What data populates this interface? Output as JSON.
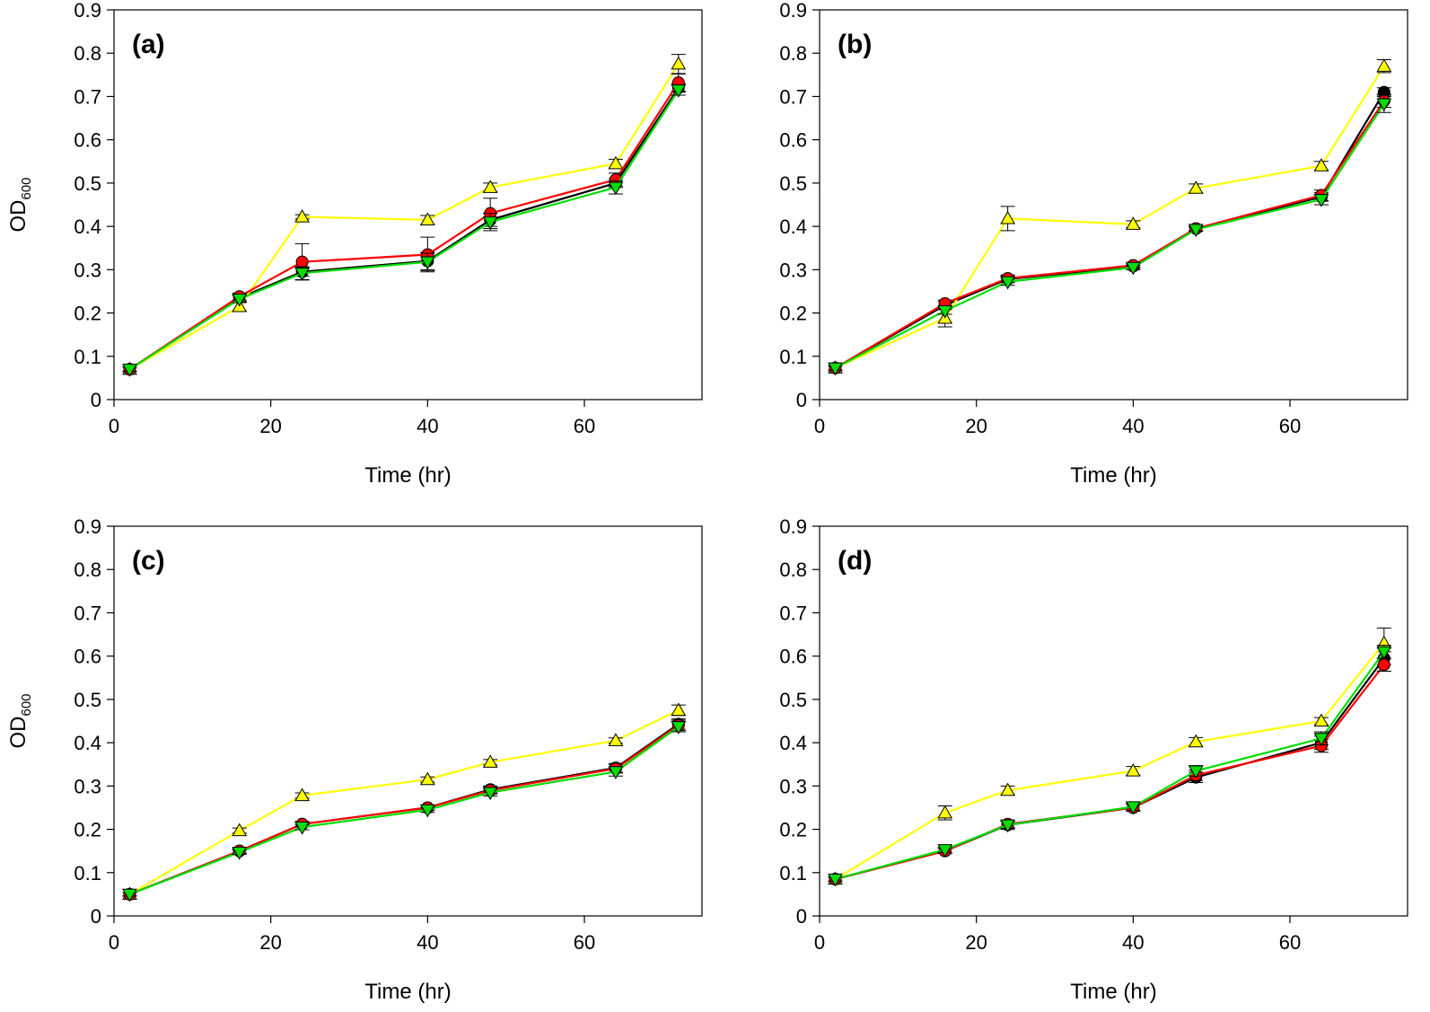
{
  "chart_data": [
    {
      "type": "line",
      "panel_label": "(a)",
      "xlabel": "Time (hr)",
      "ylabel_main": "OD",
      "ylabel_sub": "600",
      "xlim": [
        0,
        75
      ],
      "ylim": [
        0,
        0.9
      ],
      "xticks": [
        0,
        20,
        40,
        60
      ],
      "yticks": [
        0,
        0.1,
        0.2,
        0.3,
        0.4,
        0.5,
        0.6,
        0.7,
        0.8,
        0.9
      ],
      "x": [
        2,
        16,
        24,
        40,
        48,
        64,
        72
      ],
      "series": [
        {
          "color": "#000000",
          "marker": "circle",
          "values": [
            0.07,
            0.235,
            0.295,
            0.32,
            0.415,
            0.5,
            0.72
          ],
          "errors": [
            0.005,
            0.008,
            0.01,
            0.02,
            0.015,
            0.01,
            0.01
          ]
        },
        {
          "color": "#ffff00",
          "marker": "triangle-up",
          "values": [
            0.07,
            0.215,
            0.422,
            0.415,
            0.49,
            0.545,
            0.775
          ],
          "errors": [
            0.005,
            0.01,
            0.005,
            0.01,
            0.01,
            0.01,
            0.022
          ]
        },
        {
          "color": "#ff0000",
          "marker": "circle",
          "values": [
            0.07,
            0.238,
            0.318,
            0.335,
            0.43,
            0.508,
            0.732
          ],
          "errors": [
            0.005,
            0.008,
            0.042,
            0.04,
            0.035,
            0.015,
            0.02
          ]
        },
        {
          "color": "#00dd00",
          "marker": "triangle-down",
          "values": [
            0.07,
            0.232,
            0.292,
            0.318,
            0.41,
            0.49,
            0.715
          ],
          "errors": [
            0.005,
            0.008,
            0.015,
            0.02,
            0.02,
            0.015,
            0.012
          ]
        }
      ]
    },
    {
      "type": "line",
      "panel_label": "(b)",
      "xlabel": "Time (hr)",
      "ylabel_main": "",
      "ylabel_sub": "",
      "xlim": [
        0,
        75
      ],
      "ylim": [
        0,
        0.9
      ],
      "xticks": [
        0,
        20,
        40,
        60
      ],
      "yticks": [
        0,
        0.1,
        0.2,
        0.3,
        0.4,
        0.5,
        0.6,
        0.7,
        0.8,
        0.9
      ],
      "x": [
        2,
        16,
        24,
        40,
        48,
        64,
        72
      ],
      "series": [
        {
          "color": "#000000",
          "marker": "circle",
          "values": [
            0.073,
            0.218,
            0.278,
            0.308,
            0.395,
            0.468,
            0.71
          ],
          "errors": [
            0.005,
            0.008,
            0.008,
            0.005,
            0.005,
            0.01,
            0.01
          ]
        },
        {
          "color": "#ffff00",
          "marker": "triangle-up",
          "values": [
            0.073,
            0.188,
            0.418,
            0.405,
            0.488,
            0.54,
            0.77
          ],
          "errors": [
            0.005,
            0.02,
            0.028,
            0.008,
            0.01,
            0.01,
            0.015
          ]
        },
        {
          "color": "#ff0000",
          "marker": "circle",
          "values": [
            0.073,
            0.222,
            0.28,
            0.31,
            0.395,
            0.472,
            0.69
          ],
          "errors": [
            0.005,
            0.008,
            0.008,
            0.005,
            0.005,
            0.012,
            0.015
          ]
        },
        {
          "color": "#00dd00",
          "marker": "triangle-down",
          "values": [
            0.073,
            0.205,
            0.272,
            0.305,
            0.393,
            0.462,
            0.683
          ],
          "errors": [
            0.005,
            0.008,
            0.008,
            0.005,
            0.005,
            0.012,
            0.02
          ]
        }
      ]
    },
    {
      "type": "line",
      "panel_label": "(c)",
      "xlabel": "Time (hr)",
      "ylabel_main": "OD",
      "ylabel_sub": "600",
      "xlim": [
        0,
        75
      ],
      "ylim": [
        0,
        0.9
      ],
      "xticks": [
        0,
        20,
        40,
        60
      ],
      "yticks": [
        0,
        0.1,
        0.2,
        0.3,
        0.4,
        0.5,
        0.6,
        0.7,
        0.8,
        0.9
      ],
      "x": [
        2,
        16,
        24,
        40,
        48,
        64,
        72
      ],
      "series": [
        {
          "color": "#000000",
          "marker": "circle",
          "values": [
            0.05,
            0.15,
            0.212,
            0.25,
            0.292,
            0.342,
            0.443
          ],
          "errors": [
            0.004,
            0.005,
            0.006,
            0.006,
            0.008,
            0.01,
            0.012
          ]
        },
        {
          "color": "#ffff00",
          "marker": "triangle-up",
          "values": [
            0.05,
            0.197,
            0.278,
            0.315,
            0.355,
            0.405,
            0.475
          ],
          "errors": [
            0.004,
            0.006,
            0.006,
            0.006,
            0.006,
            0.006,
            0.012
          ]
        },
        {
          "color": "#ff0000",
          "marker": "circle",
          "values": [
            0.05,
            0.15,
            0.212,
            0.25,
            0.29,
            0.34,
            0.44
          ],
          "errors": [
            0.004,
            0.005,
            0.006,
            0.006,
            0.008,
            0.01,
            0.012
          ]
        },
        {
          "color": "#00dd00",
          "marker": "triangle-down",
          "values": [
            0.05,
            0.147,
            0.205,
            0.245,
            0.285,
            0.333,
            0.437
          ],
          "errors": [
            0.004,
            0.005,
            0.006,
            0.006,
            0.008,
            0.01,
            0.012
          ]
        }
      ]
    },
    {
      "type": "line",
      "panel_label": "(d)",
      "xlabel": "Time (hr)",
      "ylabel_main": "",
      "ylabel_sub": "",
      "xlim": [
        0,
        75
      ],
      "ylim": [
        0,
        0.9
      ],
      "xticks": [
        0,
        20,
        40,
        60
      ],
      "yticks": [
        0,
        0.1,
        0.2,
        0.3,
        0.4,
        0.5,
        0.6,
        0.7,
        0.8,
        0.9
      ],
      "x": [
        2,
        16,
        24,
        40,
        48,
        64,
        72
      ],
      "series": [
        {
          "color": "#000000",
          "marker": "circle",
          "values": [
            0.085,
            0.15,
            0.21,
            0.25,
            0.32,
            0.4,
            0.595
          ],
          "errors": [
            0.005,
            0.006,
            0.01,
            0.008,
            0.012,
            0.015,
            0.015
          ]
        },
        {
          "color": "#ffff00",
          "marker": "triangle-up",
          "values": [
            0.085,
            0.238,
            0.29,
            0.335,
            0.402,
            0.45,
            0.63
          ],
          "errors": [
            0.005,
            0.016,
            0.01,
            0.01,
            0.01,
            0.008,
            0.035
          ]
        },
        {
          "color": "#ff0000",
          "marker": "circle",
          "values": [
            0.085,
            0.15,
            0.212,
            0.25,
            0.325,
            0.393,
            0.58
          ],
          "errors": [
            0.005,
            0.006,
            0.008,
            0.008,
            0.012,
            0.015,
            0.015
          ]
        },
        {
          "color": "#00dd00",
          "marker": "triangle-down",
          "values": [
            0.085,
            0.153,
            0.21,
            0.252,
            0.335,
            0.41,
            0.61
          ],
          "errors": [
            0.005,
            0.006,
            0.008,
            0.008,
            0.012,
            0.015,
            0.015
          ]
        }
      ]
    }
  ]
}
